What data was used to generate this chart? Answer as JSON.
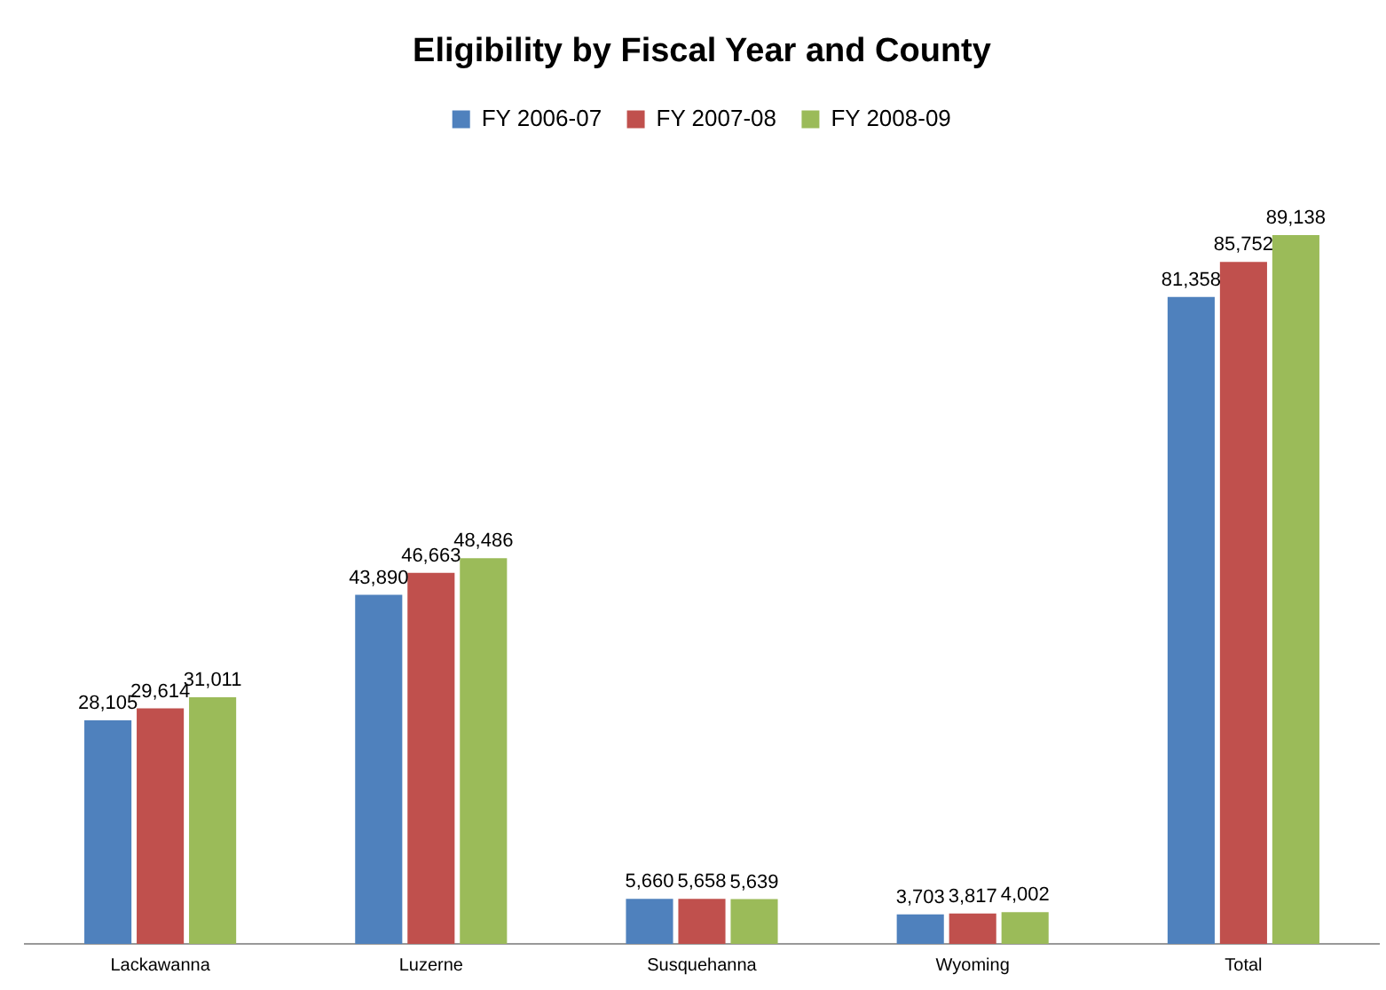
{
  "chart_data": {
    "type": "bar",
    "title": "Eligibility by Fiscal Year and County",
    "categories": [
      "Lackawanna",
      "Luzerne",
      "Susquehanna",
      "Wyoming",
      "Total"
    ],
    "series": [
      {
        "name": "FY 2006-07",
        "color": "#4f81bd",
        "values": [
          28105,
          43890,
          5660,
          3703,
          81358
        ],
        "value_labels": [
          "28,105",
          "43,890",
          "5,660",
          "3,703",
          "81,358"
        ]
      },
      {
        "name": "FY 2007-08",
        "color": "#c0504d",
        "values": [
          29614,
          46663,
          5658,
          3817,
          85752
        ],
        "value_labels": [
          "29,614",
          "46,663",
          "5,658",
          "3,817",
          "85,752"
        ]
      },
      {
        "name": "FY 2008-09",
        "color": "#9bbb59",
        "values": [
          31011,
          48486,
          5639,
          4002,
          89138
        ],
        "value_labels": [
          "31,011",
          "48,486",
          "5,639",
          "4,002",
          "89,138"
        ]
      }
    ],
    "legend": "top"
  }
}
